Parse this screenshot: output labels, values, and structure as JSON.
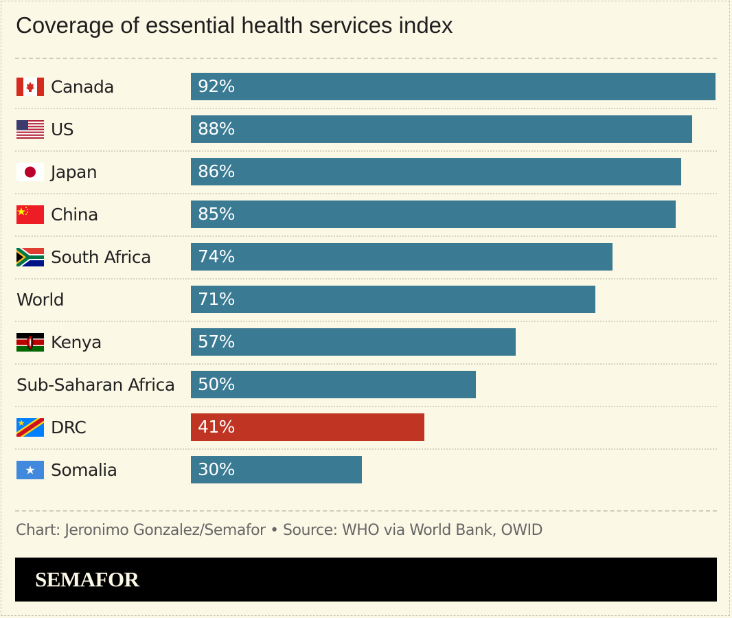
{
  "chart_data": {
    "type": "bar",
    "orientation": "horizontal",
    "title": "Coverage of essential health services index",
    "categories": [
      "Canada",
      "US",
      "Japan",
      "China",
      "South Africa",
      "World",
      "Kenya",
      "Sub-Saharan Africa",
      "DRC",
      "Somalia"
    ],
    "values": [
      92,
      88,
      86,
      85,
      74,
      71,
      57,
      50,
      41,
      30
    ],
    "data_labels": [
      "92%",
      "88%",
      "86%",
      "85%",
      "74%",
      "71%",
      "57%",
      "50%",
      "41%",
      "30%"
    ],
    "flags": [
      "canada-flag",
      "us-flag",
      "japan-flag",
      "china-flag",
      "south-africa-flag",
      null,
      "kenya-flag",
      null,
      "drc-flag",
      "somalia-flag"
    ],
    "highlight": "DRC",
    "xlim": [
      0,
      100
    ],
    "grid": false,
    "colors": {
      "bar": "#3a7a93",
      "highlight": "#c03423",
      "background": "#fcf8e6"
    }
  },
  "source": "Chart: Jeronimo Gonzalez/Semafor • Source: WHO via World Bank, OWID",
  "brand": "SEMAFOR"
}
